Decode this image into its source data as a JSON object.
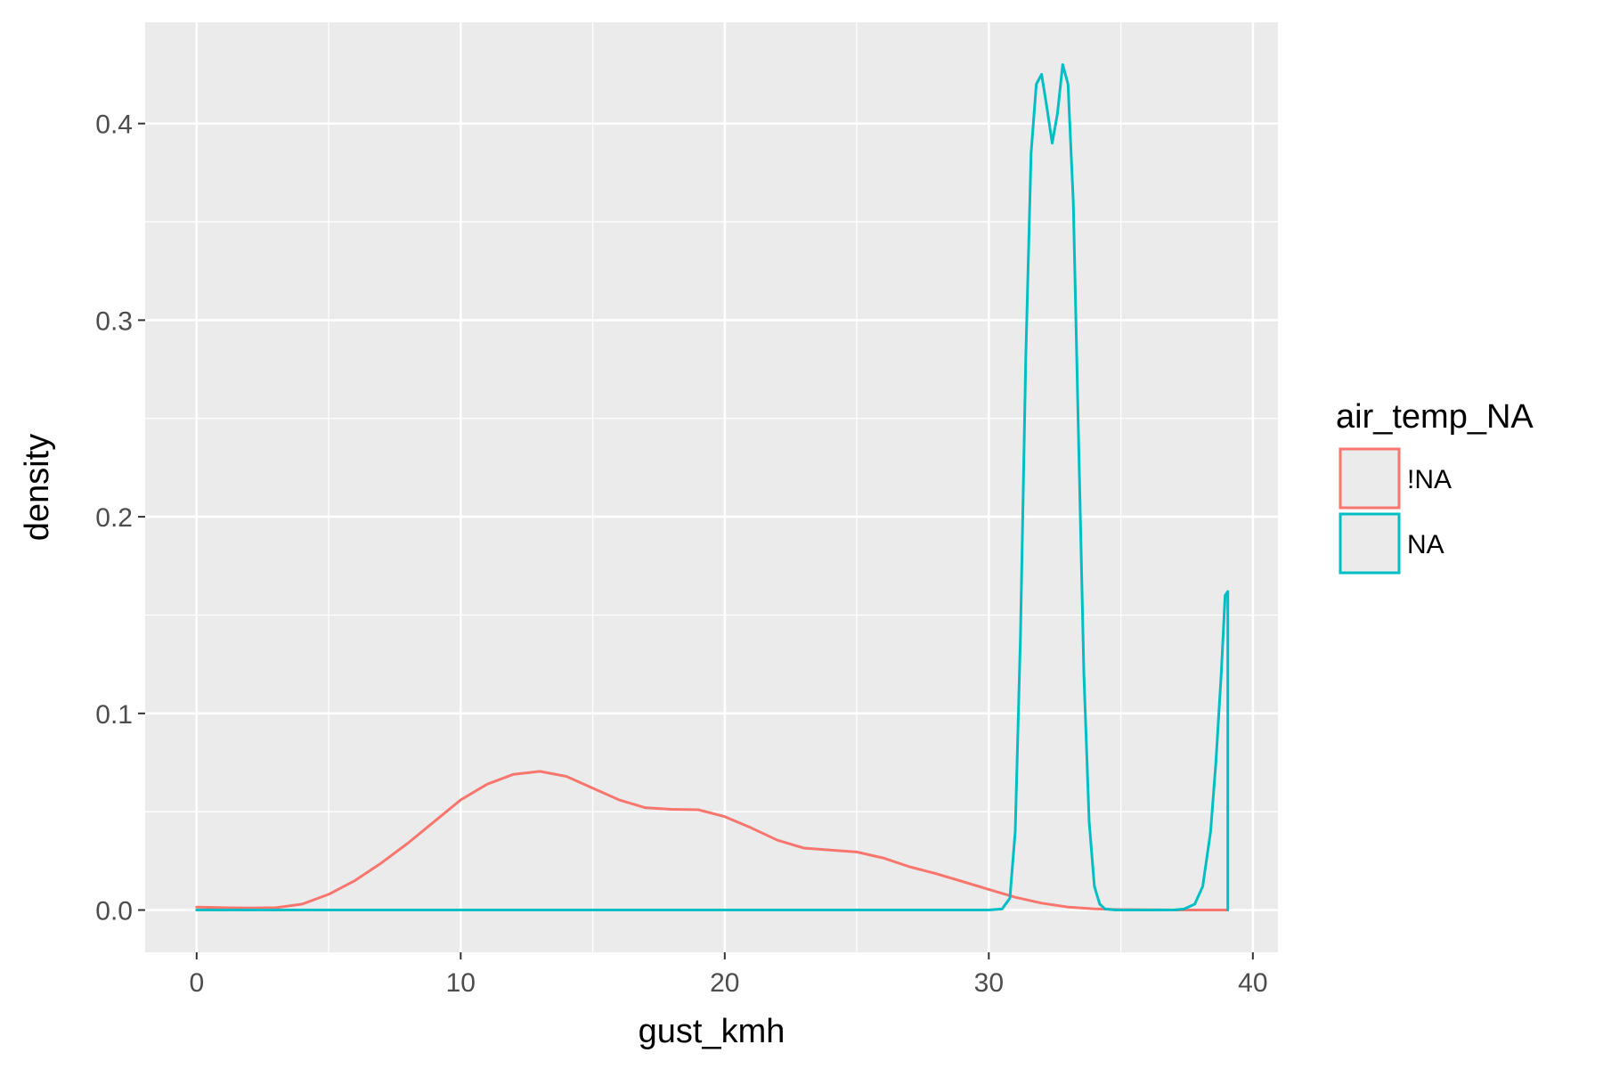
{
  "chart_data": {
    "type": "line",
    "subtype": "density",
    "title": "",
    "xlabel": "gust_kmh",
    "ylabel": "density",
    "xlim": [
      -1.95,
      40.95
    ],
    "ylim": [
      -0.0215,
      0.4515
    ],
    "x_ticks": [
      0,
      10,
      20,
      30,
      40
    ],
    "x_tick_labels": [
      "0",
      "10",
      "20",
      "30",
      "40"
    ],
    "y_ticks": [
      0.0,
      0.1,
      0.2,
      0.3,
      0.4
    ],
    "y_tick_labels": [
      "0.0",
      "0.1",
      "0.2",
      "0.3",
      "0.4"
    ],
    "grid": true,
    "legend": {
      "title": "air_temp_NA",
      "position": "right"
    },
    "series": [
      {
        "name": "!NA",
        "color": "#F8766D",
        "x": [
          0,
          1,
          2,
          3,
          4,
          5,
          6,
          7,
          8,
          9,
          10,
          11,
          12,
          13,
          14,
          15,
          16,
          17,
          18,
          19,
          20,
          21,
          22,
          23,
          24,
          25,
          26,
          27,
          28,
          29,
          30,
          31,
          32,
          33,
          34,
          35,
          36,
          37,
          38,
          39
        ],
        "y": [
          0.0015,
          0.0012,
          0.001,
          0.0012,
          0.003,
          0.008,
          0.015,
          0.024,
          0.034,
          0.045,
          0.056,
          0.064,
          0.069,
          0.0705,
          0.068,
          0.062,
          0.056,
          0.052,
          0.0512,
          0.051,
          0.0475,
          0.0418,
          0.0355,
          0.0315,
          0.0305,
          0.0295,
          0.0265,
          0.022,
          0.0185,
          0.0145,
          0.0105,
          0.0065,
          0.0035,
          0.0015,
          0.0006,
          0.0002,
          0.0001,
          0.0,
          0.0,
          0.0
        ]
      },
      {
        "name": "NA",
        "color": "#00BFC4",
        "x": [
          0,
          30,
          30.5,
          30.8,
          31.0,
          31.2,
          31.4,
          31.6,
          31.8,
          32.0,
          32.2,
          32.4,
          32.6,
          32.8,
          33.0,
          33.2,
          33.4,
          33.6,
          33.8,
          34.0,
          34.2,
          34.4,
          34.8,
          37.0,
          37.4,
          37.8,
          38.1,
          38.4,
          38.6,
          38.8,
          38.95,
          39.05,
          39.05
        ],
        "y": [
          0.0,
          0.0,
          0.0005,
          0.006,
          0.04,
          0.14,
          0.28,
          0.385,
          0.42,
          0.425,
          0.408,
          0.39,
          0.405,
          0.43,
          0.42,
          0.36,
          0.24,
          0.12,
          0.045,
          0.012,
          0.003,
          0.0005,
          0.0,
          0.0,
          0.0005,
          0.003,
          0.012,
          0.04,
          0.075,
          0.12,
          0.16,
          0.162,
          0.0
        ]
      }
    ]
  }
}
